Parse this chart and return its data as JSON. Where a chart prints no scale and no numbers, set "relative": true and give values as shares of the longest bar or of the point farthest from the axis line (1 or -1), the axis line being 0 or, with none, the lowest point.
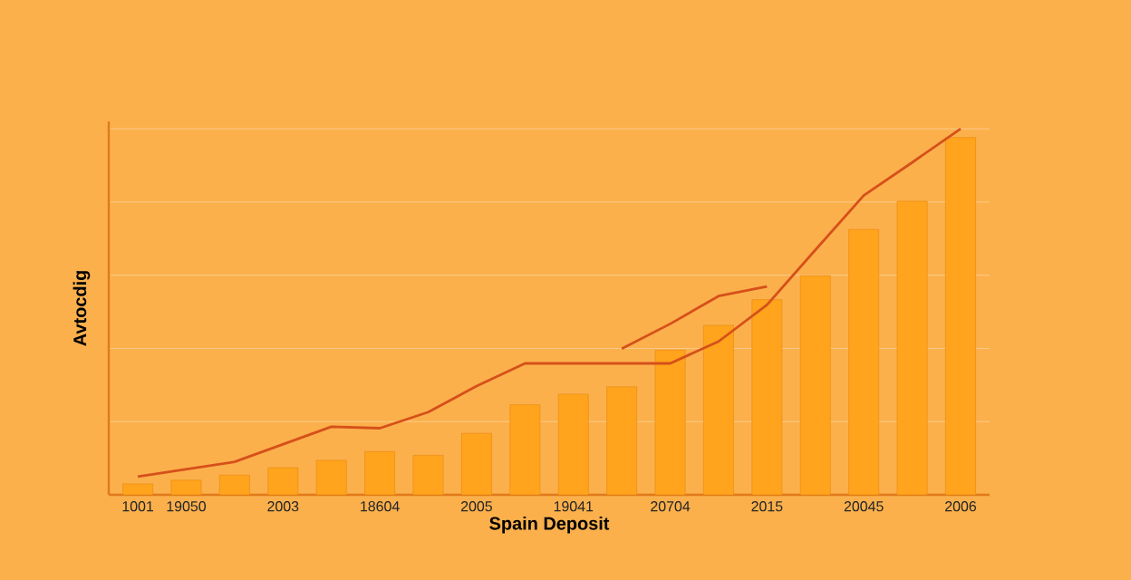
{
  "chart_data": {
    "type": "bar",
    "xlabel": "Spain Deposit",
    "ylabel": "Avtocdig",
    "relative": true,
    "categories": [
      "1001",
      "19050",
      null,
      "2003",
      null,
      "18604",
      null,
      "2005",
      null,
      "19041",
      null,
      "20704",
      null,
      "2015",
      null,
      "20045",
      null,
      "2006"
    ],
    "grid": "y",
    "series": [
      {
        "color": "#ffa41c",
        "values": [
          0.03,
          0.04,
          0.054,
          0.074,
          0.094,
          0.118,
          0.108,
          0.168,
          0.246,
          0.275,
          0.295,
          0.395,
          0.463,
          0.533,
          0.599,
          0.725,
          0.802,
          0.976
        ]
      },
      {
        "type": "line",
        "color": "#d6501a",
        "values": [
          0.05,
          0.07,
          0.09,
          0.138,
          0.186,
          0.182,
          0.226,
          0.297,
          0.359,
          0.359,
          0.359,
          0.359,
          0.419,
          0.519,
          0.669,
          0.818,
          0.908,
          1
        ]
      },
      {
        "type": "line",
        "color": "#d6501a",
        "values": [
          null,
          null,
          null,
          null,
          null,
          null,
          null,
          null,
          null,
          null,
          0.399,
          0.467,
          0.543,
          0.569,
          null,
          null,
          null,
          null
        ]
      }
    ]
  }
}
